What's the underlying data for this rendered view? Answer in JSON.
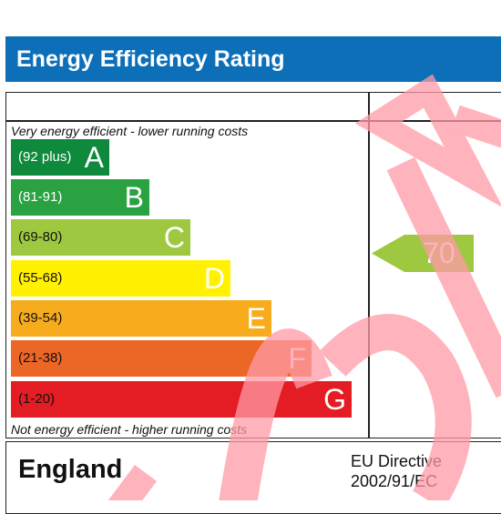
{
  "header": {
    "title": "Energy Efficiency Rating"
  },
  "captions": {
    "top": "Very energy efficient - lower running costs",
    "bottom": "Not energy efficient - higher running costs"
  },
  "bands": [
    {
      "range": "(92 plus)",
      "letter": "A",
      "color": "#0f8a3c"
    },
    {
      "range": "(81-91)",
      "letter": "B",
      "color": "#2aa242"
    },
    {
      "range": "(69-80)",
      "letter": "C",
      "color": "#9dc83f"
    },
    {
      "range": "(55-68)",
      "letter": "D",
      "color": "#fff100"
    },
    {
      "range": "(39-54)",
      "letter": "E",
      "color": "#f7ac1d"
    },
    {
      "range": "(21-38)",
      "letter": "F",
      "color": "#ec6625"
    },
    {
      "range": "(1-20)",
      "letter": "G",
      "color": "#e31d23"
    }
  ],
  "current_rating": {
    "value": "70",
    "color": "#9dc83f"
  },
  "footer": {
    "country": "England",
    "directive_line1": "EU Directive",
    "directive_line2": "2002/91/EC"
  },
  "watermark_color": "#ff9aa6"
}
